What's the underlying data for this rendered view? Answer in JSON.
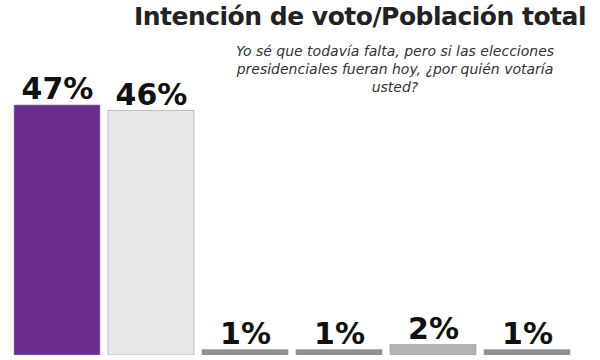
{
  "chart_data": {
    "type": "bar",
    "title": "Intención de voto/Población total",
    "subtitle": "Yo sé que todavía falta, pero si las elecciones presidenciales fueran hoy, ¿por quién votaría usted?",
    "categories": [
      null,
      null,
      null,
      null,
      null,
      null
    ],
    "values": [
      47,
      46,
      1,
      1,
      2,
      1
    ],
    "value_labels": [
      "47%",
      "46%",
      "1%",
      "1%",
      "2%",
      "1%"
    ],
    "colors": [
      "#6b2d8f",
      "#e8e8e8",
      "#8f8f8f",
      "#8f8f8f",
      "#b3b3b3",
      "#8f8f8f"
    ],
    "ylim": [
      0,
      50
    ],
    "data_labels": true,
    "tick_labels": false
  }
}
